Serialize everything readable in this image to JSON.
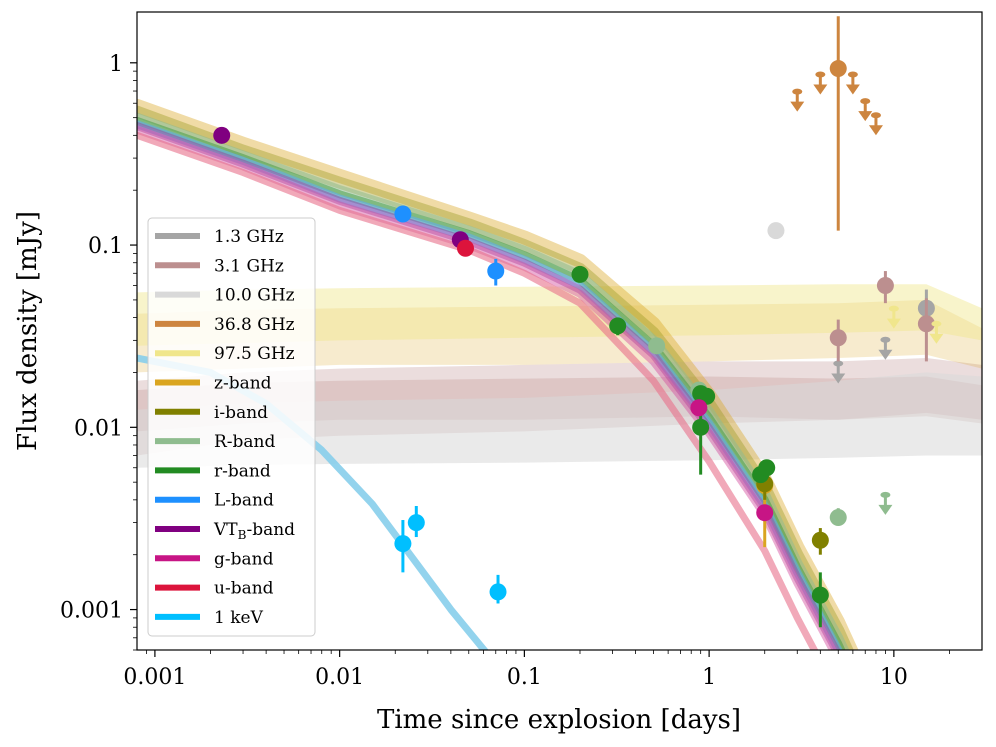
{
  "chart_data": {
    "type": "scatter",
    "xscale": "log",
    "yscale": "log",
    "xlim": [
      0.0008,
      30
    ],
    "ylim": [
      0.0006,
      1.9
    ],
    "xlabel": "Time since explosion [days]",
    "ylabel": "Flux density [mJy]",
    "xticks": [
      {
        "value": 0.001,
        "label": "0.001"
      },
      {
        "value": 0.01,
        "label": "0.01"
      },
      {
        "value": 0.1,
        "label": "0.1"
      },
      {
        "value": 1,
        "label": "1"
      },
      {
        "value": 10,
        "label": "10"
      }
    ],
    "yticks": [
      {
        "value": 0.001,
        "label": "0.001"
      },
      {
        "value": 0.01,
        "label": "0.01"
      },
      {
        "value": 0.1,
        "label": "0.1"
      },
      {
        "value": 1,
        "label": "1"
      }
    ],
    "legend_position": "center-left",
    "series": [
      {
        "name": "1.3 GHz",
        "legend": "1.3 GHz",
        "color": "#a5a5a5",
        "points": [
          {
            "x": 15.0,
            "y": 0.045,
            "yerr": [
              0.035,
              0.057
            ]
          }
        ],
        "upper_limits": [
          {
            "x": 5.0,
            "y": 0.02
          },
          {
            "x": 9.0,
            "y": 0.027
          }
        ],
        "band": {
          "color": "#c9a39f",
          "opacity": 0.35,
          "x": [
            0.0008,
            0.003,
            0.01,
            0.1,
            1,
            5,
            15,
            30
          ],
          "lo": [
            0.0095,
            0.0105,
            0.011,
            0.011,
            0.0115,
            0.011,
            0.0115,
            0.0105
          ],
          "hi": [
            0.016,
            0.0175,
            0.018,
            0.0185,
            0.019,
            0.0185,
            0.019,
            0.017
          ]
        }
      },
      {
        "name": "3.1 GHz",
        "legend": "3.1 GHz",
        "color": "#bc8f8f",
        "points": [
          {
            "x": 5.0,
            "y": 0.031,
            "yerr": [
              0.023,
              0.039
            ]
          },
          {
            "x": 9.0,
            "y": 0.06,
            "yerr": [
              0.048,
              0.072
            ]
          },
          {
            "x": 15.0,
            "y": 0.037,
            "yerr": [
              0.023,
              0.051
            ]
          }
        ],
        "upper_limits": [],
        "band": {
          "color": "#bc8f8f",
          "opacity": 0.3,
          "x": [
            0.0008,
            0.003,
            0.01,
            0.1,
            1,
            5,
            15,
            30
          ],
          "lo": [
            0.007,
            0.0085,
            0.009,
            0.0095,
            0.0105,
            0.011,
            0.012,
            0.011
          ],
          "hi": [
            0.018,
            0.02,
            0.021,
            0.022,
            0.023,
            0.023,
            0.024,
            0.022
          ]
        }
      },
      {
        "name": "10.0 GHz",
        "legend": "10.0 GHz",
        "color": "#d9d9d9",
        "points": [
          {
            "x": 2.3,
            "y": 0.12
          }
        ],
        "upper_limits": [],
        "band": {
          "color": "#d9d9d9",
          "opacity": 0.55,
          "x": [
            0.0008,
            0.003,
            0.01,
            0.1,
            1,
            5,
            15,
            30
          ],
          "lo": [
            0.006,
            0.0062,
            0.0063,
            0.0064,
            0.0066,
            0.0068,
            0.007,
            0.007
          ],
          "hi": [
            0.0125,
            0.0135,
            0.014,
            0.0145,
            0.016,
            0.018,
            0.02,
            0.019
          ]
        }
      },
      {
        "name": "36.8 GHz",
        "legend": "36.8 GHz",
        "color": "#cd853f",
        "points": [
          {
            "x": 5.0,
            "y": 0.93,
            "yerr": [
              0.12,
              1.8
            ]
          }
        ],
        "upper_limits": [
          {
            "x": 3.0,
            "y": 0.62
          },
          {
            "x": 4.0,
            "y": 0.77
          },
          {
            "x": 6.0,
            "y": 0.77
          },
          {
            "x": 7.0,
            "y": 0.55
          },
          {
            "x": 8.0,
            "y": 0.46
          }
        ],
        "band": {
          "color": "#daa520",
          "opacity": 0.22,
          "x": [
            0.0008,
            0.003,
            0.01,
            0.1,
            1,
            5,
            15,
            30
          ],
          "lo": [
            0.02,
            0.021,
            0.022,
            0.022,
            0.023,
            0.024,
            0.025,
            0.021
          ],
          "hi": [
            0.042,
            0.044,
            0.045,
            0.046,
            0.047,
            0.048,
            0.05,
            0.035
          ]
        }
      },
      {
        "name": "97.5 GHz",
        "legend": "97.5 GHz",
        "color": "#f0e68c",
        "points": [],
        "upper_limits": [
          {
            "x": 10.0,
            "y": 0.04
          },
          {
            "x": 17.0,
            "y": 0.033
          }
        ],
        "band": {
          "color": "#f0e68c",
          "opacity": 0.45,
          "x": [
            0.0008,
            0.003,
            0.01,
            0.1,
            1,
            5,
            15,
            30
          ],
          "lo": [
            0.028,
            0.029,
            0.03,
            0.031,
            0.032,
            0.033,
            0.034,
            0.03
          ],
          "hi": [
            0.055,
            0.057,
            0.058,
            0.059,
            0.06,
            0.061,
            0.061,
            0.045
          ]
        }
      },
      {
        "name": "z-band",
        "legend": "z-band",
        "color": "#daa520",
        "points": [
          {
            "x": 2.0,
            "y": 0.0048,
            "yerr": [
              0.0022,
              0.006
            ]
          }
        ],
        "upper_limits": [],
        "model": {
          "color": "#daa520",
          "width": 14,
          "opacity": 0.4,
          "x": [
            0.0008,
            0.003,
            0.01,
            0.05,
            0.1,
            0.2,
            0.5,
            1,
            2,
            3,
            5,
            8
          ],
          "y": [
            0.58,
            0.36,
            0.24,
            0.14,
            0.11,
            0.082,
            0.037,
            0.015,
            0.0052,
            0.0022,
            0.00085,
            0.0003
          ]
        }
      },
      {
        "name": "i-band",
        "legend": "i-band",
        "color": "#808000",
        "points": [
          {
            "x": 2.0,
            "y": 0.0049,
            "yerr": [
              0.004,
              0.006
            ]
          },
          {
            "x": 4.0,
            "y": 0.0024,
            "yerr": [
              0.002,
              0.0028
            ]
          }
        ],
        "upper_limits": [],
        "model": {
          "color": "#9a9a22",
          "width": 12,
          "opacity": 0.4,
          "x": [
            0.0008,
            0.003,
            0.01,
            0.05,
            0.1,
            0.2,
            0.5,
            1,
            2,
            3,
            5,
            8
          ],
          "y": [
            0.54,
            0.33,
            0.22,
            0.13,
            0.1,
            0.074,
            0.033,
            0.0135,
            0.0047,
            0.002,
            0.00077,
            0.00027
          ]
        }
      },
      {
        "name": "R-band",
        "legend": "R-band",
        "color": "#8fbc8f",
        "points": [
          {
            "x": 0.52,
            "y": 0.028
          },
          {
            "x": 0.88,
            "y": 0.016
          },
          {
            "x": 5.0,
            "y": 0.0032,
            "yerr": [
              0.0029,
              0.0036
            ]
          }
        ],
        "upper_limits": [
          {
            "x": 9.0,
            "y": 0.0038
          }
        ],
        "model": {
          "color": "#8fbc8f",
          "width": 10,
          "opacity": 0.55,
          "x": [
            0.0008,
            0.003,
            0.01,
            0.05,
            0.1,
            0.2,
            0.5,
            1,
            2,
            3,
            5,
            8
          ],
          "y": [
            0.5,
            0.31,
            0.2,
            0.12,
            0.093,
            0.068,
            0.03,
            0.0122,
            0.0043,
            0.0018,
            0.0007,
            0.00025
          ]
        }
      },
      {
        "name": "r-band",
        "legend": "r-band",
        "color": "#228b22",
        "points": [
          {
            "x": 0.2,
            "y": 0.069
          },
          {
            "x": 0.32,
            "y": 0.036,
            "yerr": [
              0.032,
              0.04
            ]
          },
          {
            "x": 0.9,
            "y": 0.0153
          },
          {
            "x": 0.97,
            "y": 0.0148
          },
          {
            "x": 0.9,
            "y": 0.01,
            "yerr": [
              0.0055,
              0.014
            ]
          },
          {
            "x": 1.9,
            "y": 0.0055
          },
          {
            "x": 2.05,
            "y": 0.006
          },
          {
            "x": 4.0,
            "y": 0.0012,
            "yerr": [
              0.0008,
              0.0016
            ]
          }
        ],
        "upper_limits": [],
        "model": {
          "color": "#3d9a3d",
          "width": 8,
          "opacity": 0.5,
          "x": [
            0.0008,
            0.003,
            0.01,
            0.05,
            0.1,
            0.2,
            0.5,
            1,
            2,
            3,
            5,
            8
          ],
          "y": [
            0.48,
            0.3,
            0.19,
            0.115,
            0.088,
            0.064,
            0.028,
            0.0113,
            0.004,
            0.0017,
            0.00065,
            0.00023
          ]
        }
      },
      {
        "name": "L-band",
        "legend": "L-band",
        "color": "#1e90ff",
        "points": [
          {
            "x": 0.022,
            "y": 0.148
          },
          {
            "x": 0.07,
            "y": 0.072,
            "yerr": [
              0.06,
              0.084
            ]
          }
        ],
        "upper_limits": [],
        "model": {
          "color": "#5aaaff",
          "width": 8,
          "opacity": 0.5,
          "x": [
            0.0008,
            0.003,
            0.01,
            0.05,
            0.1,
            0.2,
            0.5,
            1,
            2,
            3,
            5,
            8
          ],
          "y": [
            0.46,
            0.29,
            0.18,
            0.11,
            0.083,
            0.06,
            0.026,
            0.0105,
            0.0037,
            0.0016,
            0.0006,
            0.00021
          ]
        }
      },
      {
        "name": "VT_B-band",
        "legend": "VT",
        "legend_sub": "B",
        "legend_suffix": "-band",
        "color": "#800080",
        "points": [
          {
            "x": 0.0023,
            "y": 0.4
          },
          {
            "x": 0.045,
            "y": 0.107
          }
        ],
        "upper_limits": [],
        "model": {
          "color": "#9a3a9a",
          "width": 8,
          "opacity": 0.45,
          "x": [
            0.0008,
            0.003,
            0.01,
            0.05,
            0.1,
            0.2,
            0.5,
            1,
            2,
            3,
            5,
            8
          ],
          "y": [
            0.45,
            0.28,
            0.175,
            0.105,
            0.08,
            0.057,
            0.025,
            0.0099,
            0.0035,
            0.0015,
            0.00057,
            0.0002
          ]
        }
      },
      {
        "name": "g-band",
        "legend": "g-band",
        "color": "#c71585",
        "points": [
          {
            "x": 0.88,
            "y": 0.0128
          },
          {
            "x": 2.0,
            "y": 0.0034
          }
        ],
        "upper_limits": [],
        "model": {
          "color": "#d24c9e",
          "width": 8,
          "opacity": 0.45,
          "x": [
            0.0008,
            0.003,
            0.01,
            0.05,
            0.1,
            0.2,
            0.5,
            1,
            2,
            3,
            5,
            8
          ],
          "y": [
            0.43,
            0.27,
            0.165,
            0.1,
            0.076,
            0.054,
            0.023,
            0.0093,
            0.0033,
            0.0014,
            0.00053,
            0.00019
          ]
        }
      },
      {
        "name": "u-band",
        "legend": "u-band",
        "color": "#dc143c",
        "points": [
          {
            "x": 0.048,
            "y": 0.096
          }
        ],
        "upper_limits": [],
        "model": {
          "color": "#e8708a",
          "width": 7,
          "opacity": 0.6,
          "x": [
            0.0008,
            0.003,
            0.01,
            0.05,
            0.1,
            0.2,
            0.5,
            1,
            2,
            3,
            5,
            8
          ],
          "y": [
            0.4,
            0.25,
            0.155,
            0.094,
            0.07,
            0.048,
            0.018,
            0.0065,
            0.0021,
            0.0009,
            0.00034,
            0.00012
          ]
        }
      },
      {
        "name": "1 keV",
        "legend": "1 keV",
        "color": "#00bfff",
        "points": [
          {
            "x": 0.022,
            "y": 0.0023,
            "yerr": [
              0.0016,
              0.0031
            ]
          },
          {
            "x": 0.026,
            "y": 0.003,
            "yerr": [
              0.0025,
              0.0037
            ]
          },
          {
            "x": 0.072,
            "y": 0.00125,
            "yerr": [
              0.00108,
              0.00155
            ]
          }
        ],
        "upper_limits": [],
        "model": {
          "color": "#87ceeb",
          "width": 7,
          "opacity": 0.9,
          "x": [
            0.0008,
            0.002,
            0.004,
            0.008,
            0.015,
            0.025,
            0.04,
            0.065
          ],
          "y": [
            0.024,
            0.02,
            0.0135,
            0.0075,
            0.0038,
            0.0019,
            0.001,
            0.00055
          ]
        }
      }
    ]
  }
}
